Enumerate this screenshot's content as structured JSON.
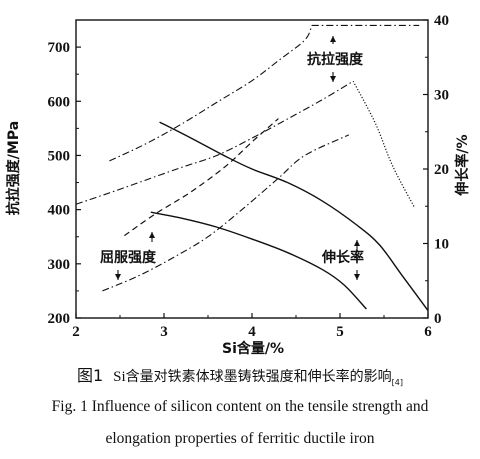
{
  "chart_data": {
    "type": "line",
    "xlabel": "Si含量/%",
    "ylabel_left": "抗拉强度/MPa",
    "ylabel_right": "伸长率/%",
    "xlim": [
      2,
      6
    ],
    "ylim_left": [
      200,
      750
    ],
    "ylim_right": [
      0,
      40
    ],
    "xticks": [
      2,
      3,
      4,
      5,
      6
    ],
    "yticks_left": [
      200,
      300,
      400,
      500,
      600,
      700
    ],
    "yticks_right": [
      0,
      10,
      20,
      30,
      40
    ],
    "grid": false,
    "annotations": [
      {
        "label": "抗拉强度"
      },
      {
        "label": "屈服强度"
      },
      {
        "label": "伸长率"
      }
    ],
    "series": [
      {
        "axis": "left",
        "style": "dash-dot",
        "points": [
          [
            2.38,
            490
          ],
          [
            2.8,
            522
          ],
          [
            3.2,
            558
          ],
          [
            3.6,
            598
          ],
          [
            4.0,
            638
          ],
          [
            4.3,
            675
          ],
          [
            4.6,
            713
          ],
          [
            4.68,
            740
          ]
        ]
      },
      {
        "axis": "left",
        "style": "dash-dot",
        "points": [
          [
            2.0,
            410
          ],
          [
            2.4,
            432
          ],
          [
            2.8,
            455
          ],
          [
            3.2,
            478
          ],
          [
            3.6,
            500
          ],
          [
            4.0,
            532
          ],
          [
            4.4,
            567
          ],
          [
            4.8,
            603
          ],
          [
            5.15,
            637
          ]
        ]
      },
      {
        "axis": "left",
        "style": "dash-dot",
        "points": [
          [
            4.68,
            740
          ],
          [
            5.0,
            740
          ],
          [
            5.4,
            740
          ],
          [
            5.9,
            740
          ]
        ]
      },
      {
        "axis": "left",
        "style": "dotted",
        "points": [
          [
            5.15,
            637
          ],
          [
            5.4,
            560
          ],
          [
            5.6,
            480
          ],
          [
            5.85,
            403
          ]
        ]
      },
      {
        "axis": "left",
        "style": "dashed",
        "points": [
          [
            2.55,
            352
          ],
          [
            2.9,
            392
          ],
          [
            3.3,
            432
          ],
          [
            3.7,
            480
          ],
          [
            4.0,
            525
          ],
          [
            4.3,
            568
          ]
        ]
      },
      {
        "axis": "left",
        "style": "dash-dot",
        "points": [
          [
            2.3,
            250
          ],
          [
            2.7,
            277
          ],
          [
            3.1,
            311
          ],
          [
            3.5,
            350
          ],
          [
            3.9,
            402
          ],
          [
            4.3,
            458
          ],
          [
            4.6,
            500
          ],
          [
            5.1,
            538
          ]
        ]
      },
      {
        "axis": "right",
        "style": "solid",
        "points": [
          [
            2.95,
            26.3
          ],
          [
            3.3,
            24.2
          ],
          [
            3.7,
            21.7
          ],
          [
            4.0,
            20.0
          ],
          [
            4.4,
            18.2
          ],
          [
            4.8,
            15.7
          ],
          [
            5.2,
            12.4
          ],
          [
            5.45,
            9.8
          ],
          [
            5.7,
            5.8
          ],
          [
            6.0,
            1.0
          ]
        ]
      },
      {
        "axis": "right",
        "style": "solid",
        "points": [
          [
            2.85,
            14.2
          ],
          [
            3.2,
            13.4
          ],
          [
            3.6,
            12.2
          ],
          [
            4.0,
            10.6
          ],
          [
            4.4,
            8.8
          ],
          [
            4.8,
            6.5
          ],
          [
            5.05,
            4.4
          ],
          [
            5.3,
            1.2
          ]
        ]
      }
    ]
  },
  "caption": {
    "cn_number": "图1",
    "cn_si": "Si",
    "cn_text": "含量对铁素体球墨铸铁强度和伸长率的影响",
    "cn_ref": "[4]",
    "en_line1": "Fig. 1 Influence of silicon content on the tensile strength and",
    "en_line2": "elongation properties of ferritic ductile iron"
  }
}
